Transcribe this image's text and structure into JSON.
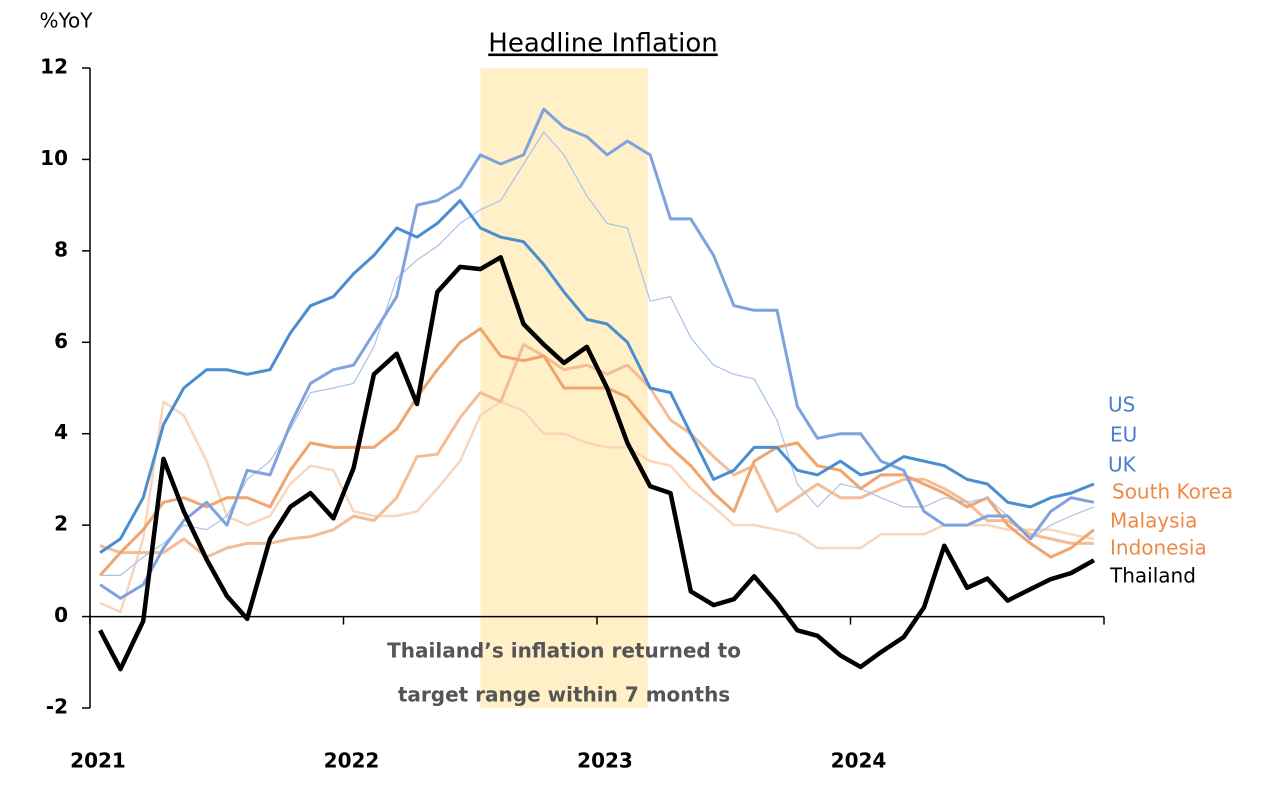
{
  "chart_data": {
    "type": "line",
    "title": "Headline Inflation",
    "y_label": "%YoY",
    "annotation": [
      "Thailand’s inflation returned to",
      "target range within 7 months"
    ],
    "highlight": [
      2022.54,
      2023.2
    ],
    "highlight_color": "#fff0c8",
    "xlim": [
      2021,
      2025
    ],
    "xticks": [
      2021,
      2022,
      2023,
      2024
    ],
    "ylim": [
      -2,
      12
    ],
    "yticks": [
      -2,
      0,
      2,
      4,
      6,
      8,
      10,
      12
    ],
    "x": [
      2021.04,
      2021.12,
      2021.21,
      2021.29,
      2021.37,
      2021.46,
      2021.54,
      2021.62,
      2021.71,
      2021.79,
      2021.87,
      2021.96,
      2022.04,
      2022.12,
      2022.21,
      2022.29,
      2022.37,
      2022.46,
      2022.54,
      2022.62,
      2022.71,
      2022.79,
      2022.87,
      2022.96,
      2023.04,
      2023.12,
      2023.21,
      2023.29,
      2023.37,
      2023.46,
      2023.54,
      2023.62,
      2023.71,
      2023.79,
      2023.87,
      2023.96,
      2024.04,
      2024.12,
      2024.21,
      2024.29,
      2024.37,
      2024.46,
      2024.54,
      2024.62,
      2024.71,
      2024.79,
      2024.87,
      2024.96
    ],
    "series": [
      {
        "name": "US",
        "color": "#4a8ed0",
        "values": [
          1.4,
          1.7,
          2.6,
          4.2,
          5.0,
          5.4,
          5.4,
          5.3,
          5.4,
          6.2,
          6.8,
          7.0,
          7.5,
          7.9,
          8.5,
          8.3,
          8.6,
          9.1,
          8.5,
          8.3,
          8.2,
          7.7,
          7.1,
          6.5,
          6.4,
          6.0,
          5.0,
          4.9,
          4.0,
          3.0,
          3.2,
          3.7,
          3.7,
          3.2,
          3.1,
          3.4,
          3.1,
          3.2,
          3.5,
          3.4,
          3.3,
          3.0,
          2.9,
          2.5,
          2.4,
          2.6,
          2.7,
          2.9
        ]
      },
      {
        "name": "EU",
        "color": "#a9c2e8",
        "values": [
          0.9,
          0.9,
          1.3,
          1.6,
          2.0,
          1.9,
          2.2,
          3.0,
          3.4,
          4.1,
          4.9,
          5.0,
          5.1,
          5.9,
          7.4,
          7.8,
          8.1,
          8.6,
          8.9,
          9.1,
          9.9,
          10.6,
          10.1,
          9.2,
          8.6,
          8.5,
          6.9,
          7.0,
          6.1,
          5.5,
          5.3,
          5.2,
          4.3,
          2.9,
          2.4,
          2.9,
          2.8,
          2.6,
          2.4,
          2.4,
          2.6,
          2.5,
          2.6,
          2.2,
          1.7,
          2.0,
          2.2,
          2.4
        ]
      },
      {
        "name": "UK",
        "color": "#7fa3dd",
        "values": [
          0.7,
          0.4,
          0.7,
          1.5,
          2.1,
          2.5,
          2.0,
          3.2,
          3.1,
          4.2,
          5.1,
          5.4,
          5.5,
          6.2,
          7.0,
          9.0,
          9.1,
          9.4,
          10.1,
          9.9,
          10.1,
          11.1,
          10.7,
          10.5,
          10.1,
          10.4,
          10.1,
          8.7,
          8.7,
          7.9,
          6.8,
          6.7,
          6.7,
          4.6,
          3.9,
          4.0,
          4.0,
          3.4,
          3.2,
          2.3,
          2.0,
          2.0,
          2.2,
          2.2,
          1.7,
          2.3,
          2.6,
          2.5
        ]
      },
      {
        "name": "South Korea",
        "color": "#f0a46e",
        "values": [
          0.9,
          1.4,
          1.9,
          2.5,
          2.6,
          2.4,
          2.6,
          2.6,
          2.4,
          3.2,
          3.8,
          3.7,
          3.7,
          3.7,
          4.1,
          4.8,
          5.4,
          6.0,
          6.3,
          5.7,
          5.6,
          5.7,
          5.0,
          5.0,
          5.0,
          4.8,
          4.2,
          3.7,
          3.3,
          2.7,
          2.3,
          3.4,
          3.7,
          3.8,
          3.3,
          3.2,
          2.8,
          3.1,
          3.1,
          2.9,
          2.7,
          2.4,
          2.6,
          2.0,
          1.6,
          1.3,
          1.5,
          1.9
        ]
      },
      {
        "name": "Malaysia",
        "color": "#f9d5bb",
        "values": [
          0.3,
          0.1,
          1.7,
          4.7,
          4.4,
          3.4,
          2.2,
          2.0,
          2.2,
          2.9,
          3.3,
          3.2,
          2.3,
          2.2,
          2.2,
          2.3,
          2.8,
          3.4,
          4.4,
          4.7,
          4.5,
          4.0,
          4.0,
          3.8,
          3.7,
          3.7,
          3.4,
          3.3,
          2.8,
          2.4,
          2.0,
          2.0,
          1.9,
          1.8,
          1.5,
          1.5,
          1.5,
          1.8,
          1.8,
          1.8,
          2.0,
          2.0,
          2.0,
          1.9,
          1.9,
          1.9,
          1.8,
          1.7
        ]
      },
      {
        "name": "Indonesia",
        "color": "#f4bd96",
        "values": [
          1.55,
          1.4,
          1.4,
          1.4,
          1.7,
          1.3,
          1.5,
          1.6,
          1.6,
          1.7,
          1.75,
          1.9,
          2.2,
          2.1,
          2.6,
          3.5,
          3.55,
          4.35,
          4.9,
          4.7,
          5.95,
          5.7,
          5.4,
          5.5,
          5.3,
          5.5,
          5.0,
          4.3,
          4.0,
          3.5,
          3.1,
          3.3,
          2.3,
          2.6,
          2.9,
          2.6,
          2.6,
          2.8,
          3.0,
          3.0,
          2.8,
          2.5,
          2.1,
          2.1,
          1.8,
          1.7,
          1.6,
          1.6
        ]
      },
      {
        "name": "Thailand",
        "color": "#000000",
        "values": [
          -0.3,
          -1.15,
          -0.1,
          3.45,
          2.3,
          1.25,
          0.45,
          -0.05,
          1.7,
          2.4,
          2.7,
          2.15,
          3.25,
          5.3,
          5.75,
          4.65,
          7.1,
          7.65,
          7.6,
          7.86,
          6.4,
          5.95,
          5.55,
          5.9,
          5.0,
          3.8,
          2.85,
          2.7,
          0.55,
          0.25,
          0.38,
          0.88,
          0.3,
          -0.3,
          -0.42,
          -0.85,
          -1.1,
          -0.78,
          -0.45,
          0.2,
          1.55,
          0.63,
          0.83,
          0.35,
          0.6,
          0.82,
          0.95,
          1.23
        ]
      }
    ]
  }
}
